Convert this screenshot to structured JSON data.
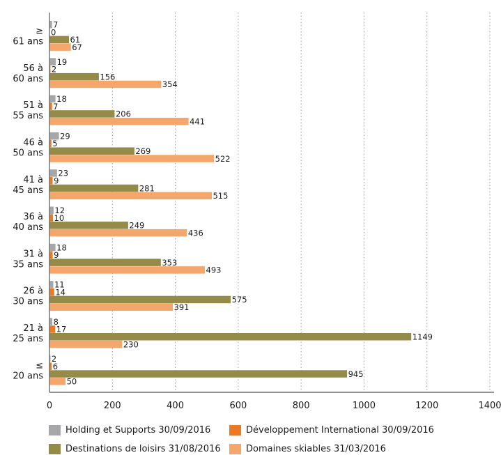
{
  "chart_data": {
    "type": "bar",
    "orientation": "horizontal",
    "categories": [
      [
        "≥",
        "61 ans"
      ],
      [
        "56 à",
        "60 ans"
      ],
      [
        "51 à",
        "55 ans"
      ],
      [
        "46 à",
        "50 ans"
      ],
      [
        "41 à",
        "45 ans"
      ],
      [
        "36 à",
        "40 ans"
      ],
      [
        "31 à",
        "35 ans"
      ],
      [
        "26 à",
        "30 ans"
      ],
      [
        "21 à",
        "25 ans"
      ],
      [
        "≤",
        "20 ans"
      ]
    ],
    "series": [
      {
        "name": "Holding et Supports 30/09/2016",
        "color": "#a7a6a9",
        "values": [
          7,
          19,
          18,
          29,
          23,
          12,
          18,
          11,
          8,
          2
        ]
      },
      {
        "name": "Développement International 30/09/2016",
        "color": "#ea7a25",
        "values": [
          0,
          2,
          7,
          5,
          9,
          10,
          9,
          14,
          17,
          6
        ]
      },
      {
        "name": "Destinations de loisirs 31/08/2016",
        "color": "#948b48",
        "values": [
          61,
          156,
          206,
          269,
          281,
          249,
          353,
          575,
          1149,
          945
        ]
      },
      {
        "name": "Domaines skiables 31/03/2016",
        "color": "#f5a76b",
        "values": [
          67,
          354,
          441,
          522,
          515,
          436,
          493,
          391,
          230,
          50
        ]
      }
    ],
    "xlim": [
      0,
      1400
    ],
    "xticks": [
      "0",
      "200",
      "400",
      "600",
      "800",
      "1000",
      "1200",
      "1400"
    ],
    "grid": "vertical dotted",
    "legend_position": "bottom"
  },
  "legend": [
    {
      "label": "Holding et Supports 30/09/2016",
      "color": "#a7a6a9"
    },
    {
      "label": "Développement International 30/09/2016",
      "color": "#ea7a25"
    },
    {
      "label": "Destinations de loisirs 31/08/2016",
      "color": "#948b48"
    },
    {
      "label": "Domaines skiables 31/03/2016",
      "color": "#f5a76b"
    }
  ]
}
